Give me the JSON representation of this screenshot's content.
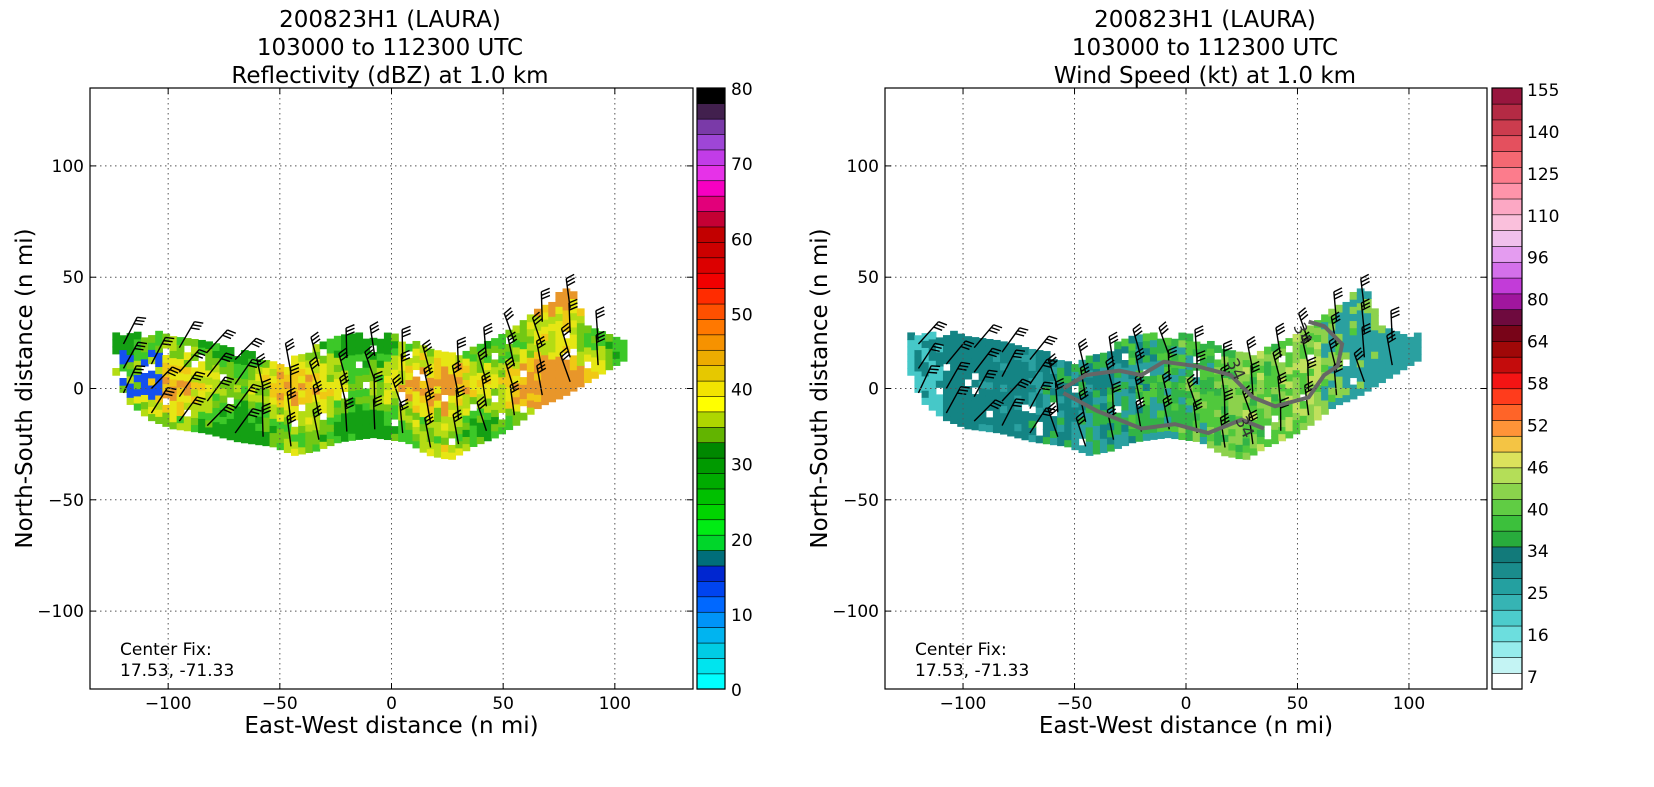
{
  "chart_data": [
    {
      "type": "heatmap",
      "title_lines": [
        "200823H1 (LAURA)",
        "103000 to 112300 UTC",
        "Reflectivity (dBZ) at 1.0 km"
      ],
      "xlabel": "East-West distance (n mi)",
      "ylabel": "North-South distance (n mi)",
      "xlim": [
        -135,
        135
      ],
      "ylim": [
        -135,
        135
      ],
      "xticks": [
        -100,
        -50,
        0,
        50,
        100
      ],
      "yticks": [
        -100,
        -50,
        0,
        50,
        100
      ],
      "xtick_labels": [
        "−100",
        "−50",
        "0",
        "50",
        "100"
      ],
      "ytick_labels": [
        "−100",
        "−50",
        "0",
        "50",
        "100"
      ],
      "grid": true,
      "annotation_lines": [
        "Center Fix:",
        "17.53, -71.33"
      ],
      "colorbar": {
        "min": 0,
        "max": 80,
        "tick_values": [
          0,
          10,
          20,
          30,
          40,
          50,
          60,
          70,
          80
        ],
        "tick_labels": [
          "0",
          "10",
          "20",
          "30",
          "40",
          "50",
          "60",
          "70",
          "80"
        ],
        "colors": [
          "#00ffff",
          "#00e4ee",
          "#00cce4",
          "#00b4f0",
          "#0094f8",
          "#0068ff",
          "#0044f0",
          "#0026d0",
          "#006e7a",
          "#00d62a",
          "#00ec14",
          "#00d400",
          "#00c000",
          "#00ac00",
          "#009a00",
          "#008800",
          "#62b400",
          "#aed600",
          "#ffff00",
          "#f2e400",
          "#e6c800",
          "#ecac00",
          "#f69200",
          "#ff7800",
          "#ff5000",
          "#ff2c00",
          "#f20000",
          "#dc0000",
          "#cc0000",
          "#c20000",
          "#c40034",
          "#e2007a",
          "#f600c2",
          "#e632e8",
          "#c23ce8",
          "#9e46d6",
          "#7a3aa8",
          "#42204e",
          "#000000"
        ]
      },
      "field_colors": [
        "#14a014",
        "#3cc828",
        "#72c814",
        "#b4dc14",
        "#e6e614",
        "#f0c814",
        "#e8962a",
        "#1450f0"
      ]
    },
    {
      "type": "heatmap",
      "title_lines": [
        "200823H1 (LAURA)",
        "103000 to 112300 UTC",
        "Wind Speed (kt) at 1.0 km"
      ],
      "xlabel": "East-West distance (n mi)",
      "ylabel": "North-South distance (n mi)",
      "xlim": [
        -135,
        135
      ],
      "ylim": [
        -135,
        135
      ],
      "xticks": [
        -100,
        -50,
        0,
        50,
        100
      ],
      "yticks": [
        -100,
        -50,
        0,
        50,
        100
      ],
      "xtick_labels": [
        "−100",
        "−50",
        "0",
        "50",
        "100"
      ],
      "ytick_labels": [
        "−100",
        "−50",
        "0",
        "50",
        "100"
      ],
      "grid": true,
      "annotation_lines": [
        "Center Fix:",
        "17.53, -71.33"
      ],
      "contour_labels": [
        "34",
        "34",
        "34"
      ],
      "colorbar": {
        "tick_labels": [
          "7",
          "16",
          "25",
          "34",
          "40",
          "46",
          "52",
          "58",
          "64",
          "80",
          "96",
          "110",
          "125",
          "140",
          "155"
        ],
        "colors": [
          "#ffffff",
          "#c4f4f4",
          "#96ecec",
          "#6cdede",
          "#4ccccc",
          "#36b4b4",
          "#24a0a0",
          "#1a8c8c",
          "#127a7a",
          "#28ac3c",
          "#3cc03c",
          "#60cc44",
          "#8ad44c",
          "#b4de58",
          "#dce25c",
          "#f4c444",
          "#ff9438",
          "#ff6428",
          "#ff3c1c",
          "#f41414",
          "#c40c0c",
          "#a00808",
          "#780418",
          "#6e0a3e",
          "#a0169e",
          "#c23cd8",
          "#d470ea",
          "#e49cf0",
          "#f0c0ec",
          "#fac0dc",
          "#fca8c4",
          "#ff94aa",
          "#fc7c8c",
          "#f46872",
          "#e4505e",
          "#cc3c4e",
          "#b42a44",
          "#98163e"
        ]
      },
      "field_colors": [
        "#148484",
        "#2aa0a0",
        "#46c8c8",
        "#32b446",
        "#50c83c",
        "#8cd24c",
        "#c0e05c"
      ]
    }
  ]
}
